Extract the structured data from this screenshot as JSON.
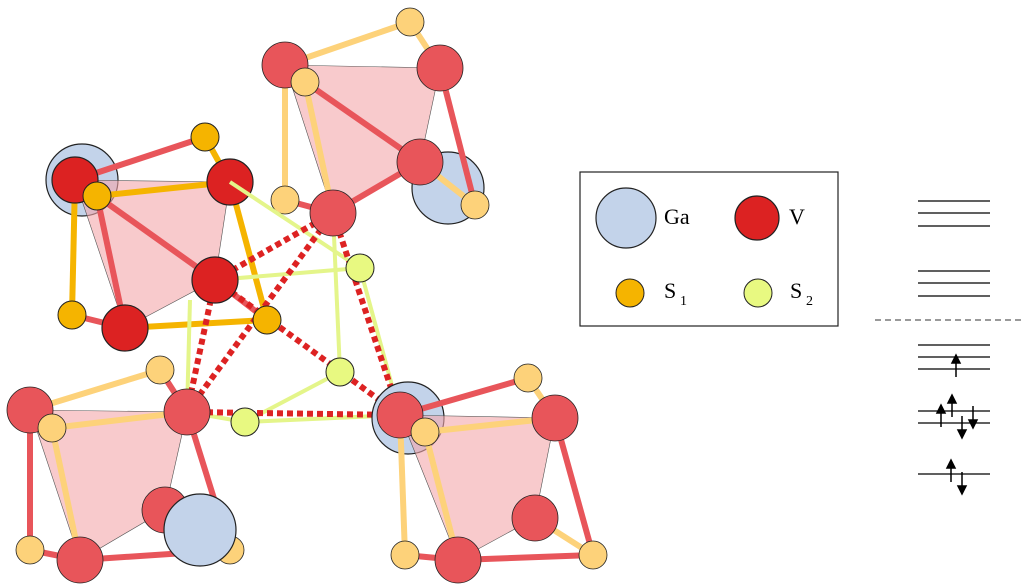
{
  "legend": {
    "items": [
      {
        "label": "Ga"
      },
      {
        "label": "V"
      },
      {
        "label": "S",
        "subscript": "1"
      },
      {
        "label": "S",
        "subscript": "2"
      }
    ]
  }
}
